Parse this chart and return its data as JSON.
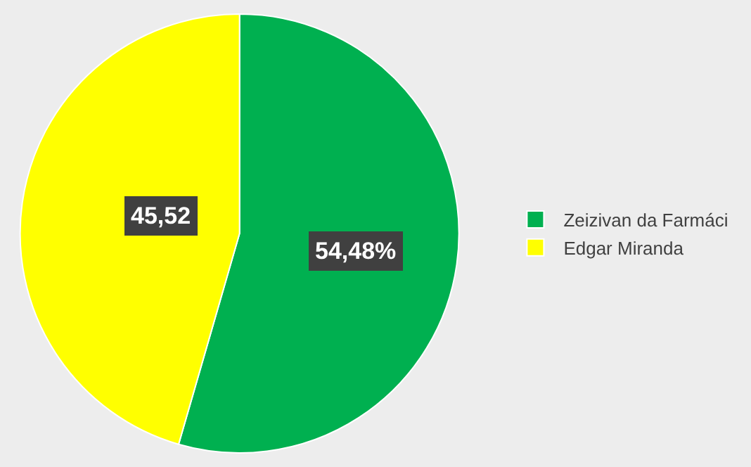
{
  "chart_data": {
    "type": "pie",
    "categories": [
      "Zeizivan da Farmáci",
      "Edgar Miranda"
    ],
    "values": [
      54.48,
      45.52
    ],
    "colors": [
      "#00b050",
      "#ffff00"
    ],
    "value_labels": [
      "54,48%",
      "45,52"
    ],
    "legend": "right"
  }
}
